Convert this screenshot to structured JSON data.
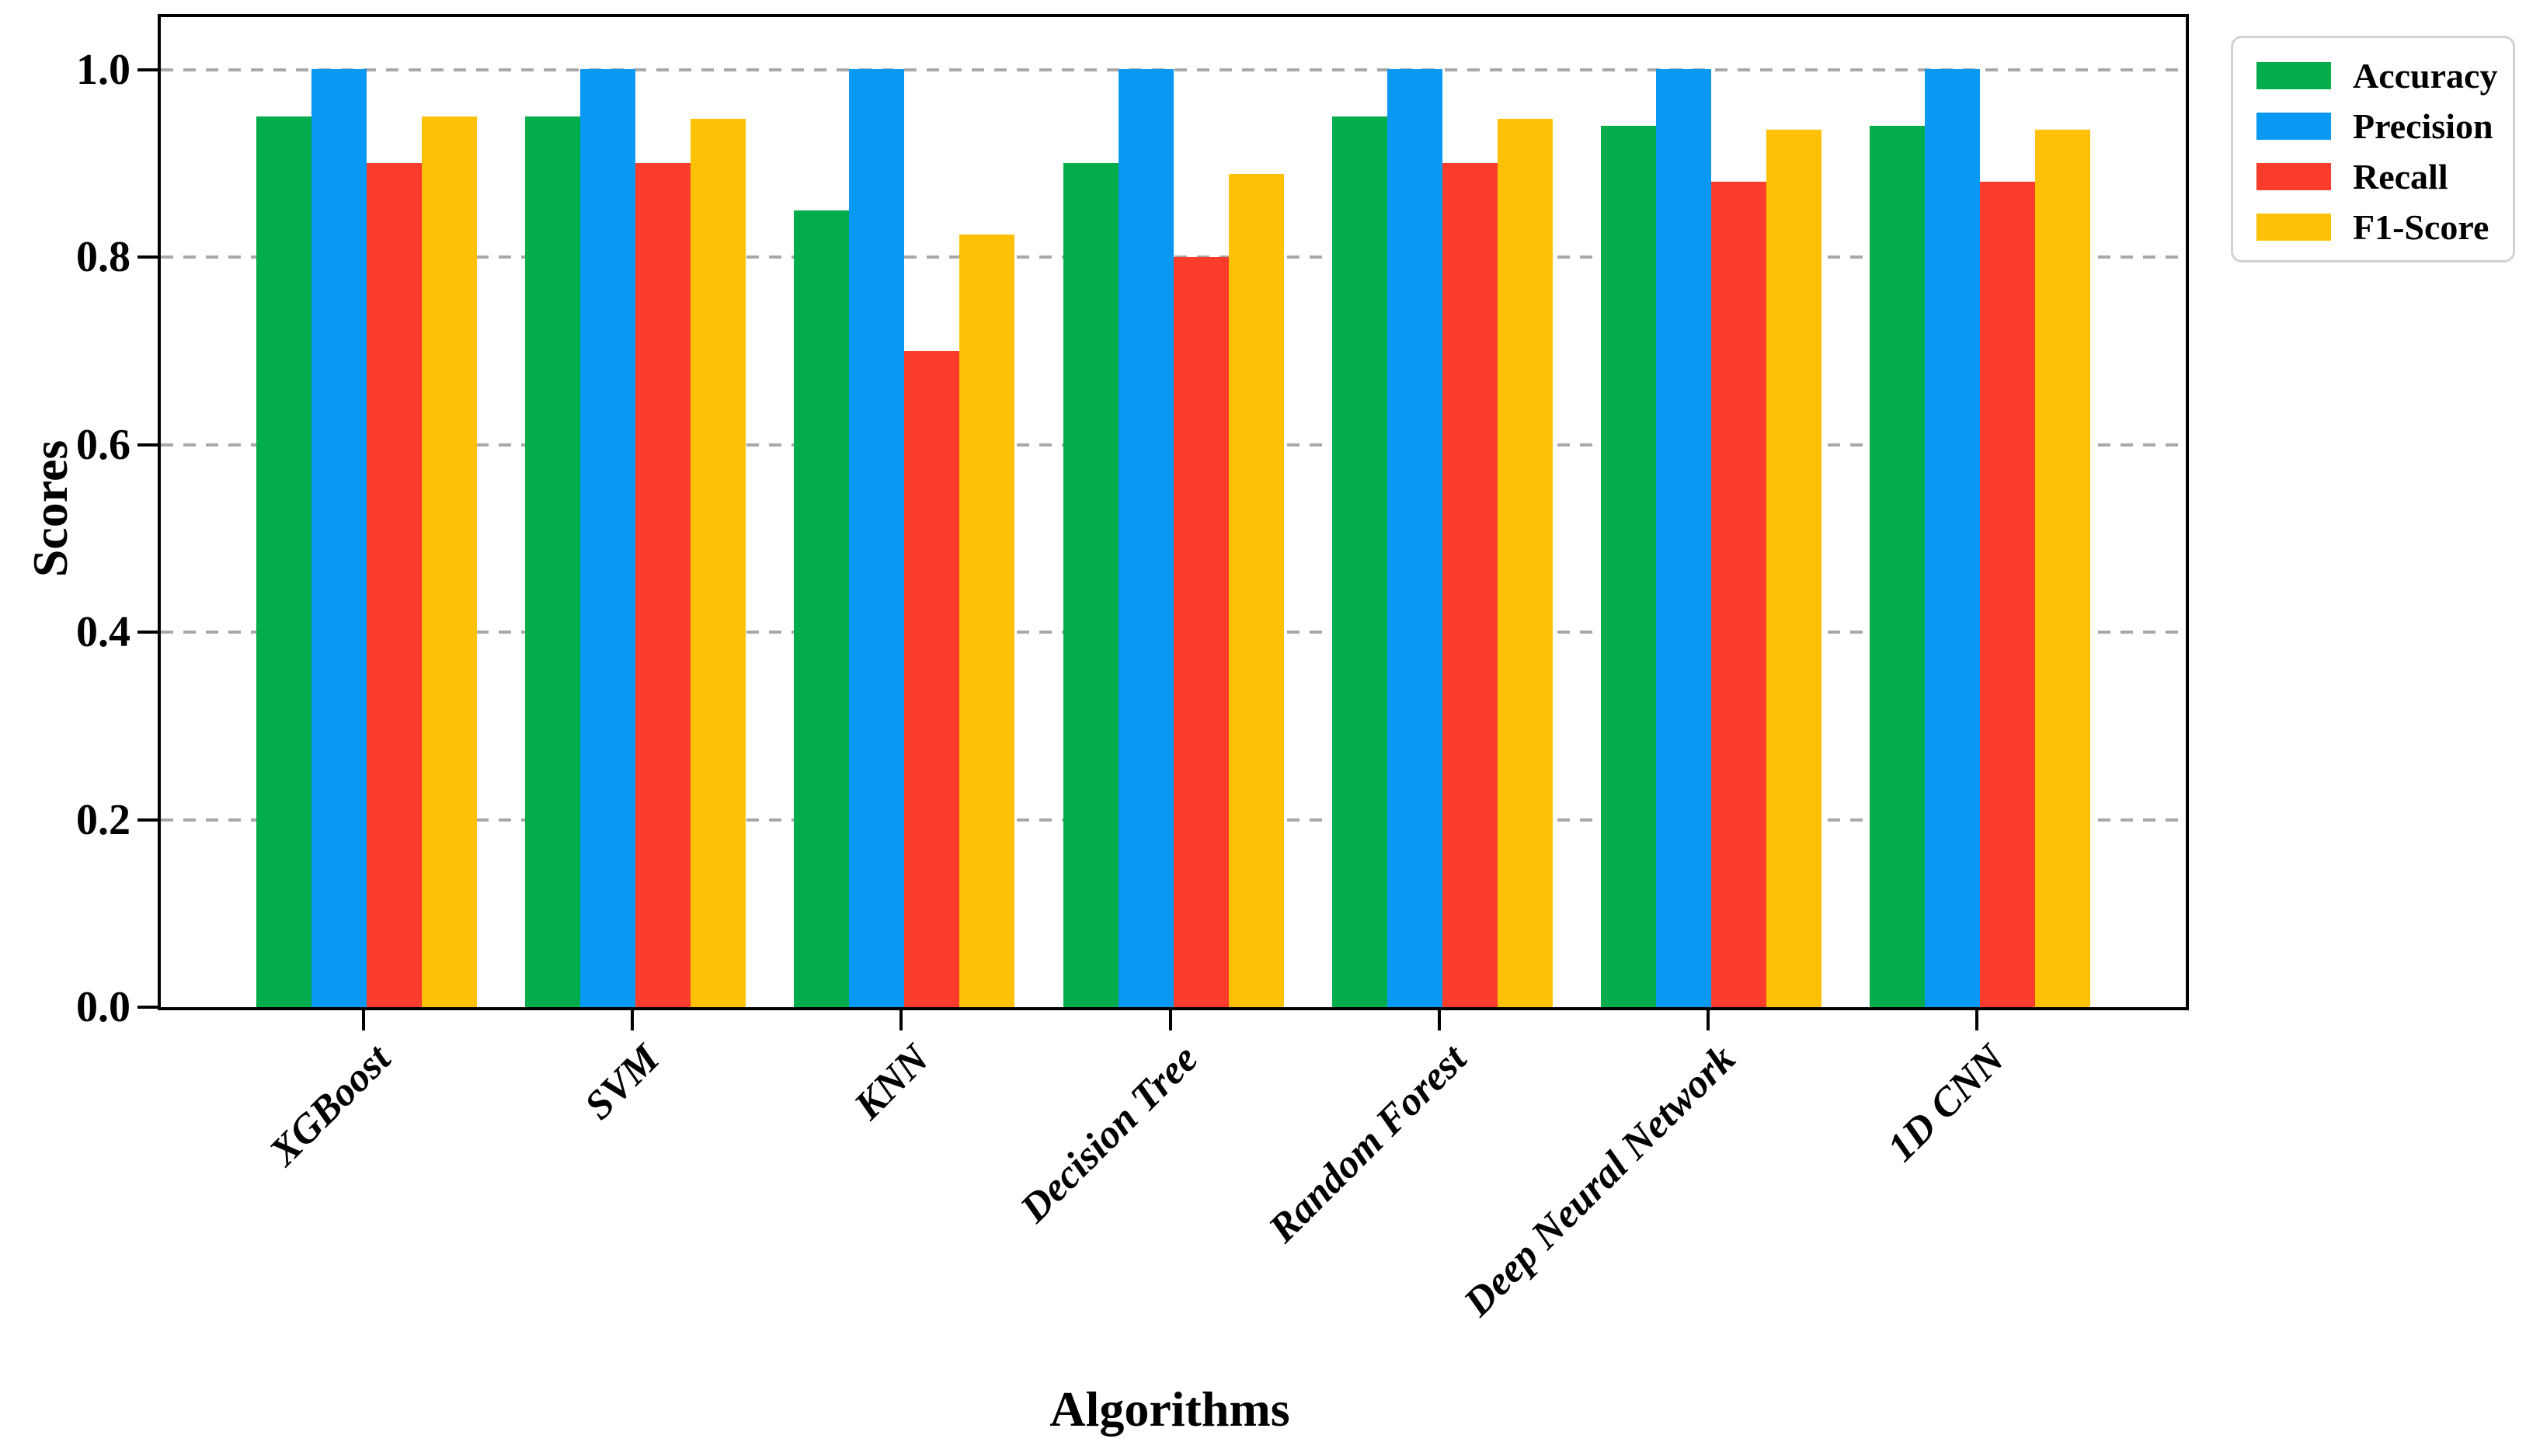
{
  "chart_data": {
    "type": "bar",
    "title": "",
    "xlabel": "Algorithms",
    "ylabel": "Scores",
    "categories": [
      "XGBoost",
      "SVM",
      "KNN",
      "Decision Tree",
      "Random Forest",
      "Deep Neural Network",
      "1D CNN"
    ],
    "series": [
      {
        "name": "Accuracy",
        "color": "#04ad4b",
        "values": [
          0.95,
          0.95,
          0.85,
          0.9,
          0.95,
          0.94,
          0.94
        ]
      },
      {
        "name": "Precision",
        "color": "#0998f2",
        "values": [
          1.0,
          1.0,
          1.0,
          1.0,
          1.0,
          1.0,
          1.0
        ]
      },
      {
        "name": "Recall",
        "color": "#fa3c2c",
        "values": [
          0.9,
          0.9,
          0.7,
          0.8,
          0.9,
          0.88,
          0.88
        ]
      },
      {
        "name": "F1-Score",
        "color": "#ffc105",
        "values": [
          0.95,
          0.947,
          0.824,
          0.889,
          0.947,
          0.936,
          0.936
        ]
      }
    ],
    "ylim": [
      0.0,
      1.056
    ],
    "yticks": [
      0.0,
      0.2,
      0.4,
      0.6,
      0.8,
      1.0
    ],
    "ytick_labels": [
      "0.0",
      "0.2",
      "0.4",
      "0.6",
      "0.8",
      "1.0"
    ],
    "grid": "horizontal-dashed",
    "grid_color": "#a8a8a8",
    "legend_position": "outside-upper-right",
    "bar_gap_within_group": 0,
    "label_rotation_deg": 45
  }
}
